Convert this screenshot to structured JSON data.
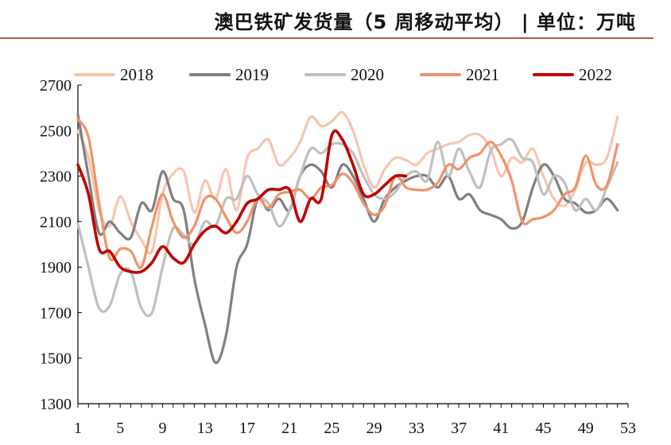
{
  "chart_data": {
    "type": "line",
    "title": "澳巴铁矿发货量（5 周移动平均） | 单位：万吨",
    "xlabel": "",
    "ylabel": "",
    "ylim": [
      1300,
      2700
    ],
    "xlim": [
      1,
      53
    ],
    "yticks": [
      1300,
      1500,
      1700,
      1900,
      2100,
      2300,
      2500,
      2700
    ],
    "xticks": [
      1,
      5,
      9,
      13,
      17,
      21,
      25,
      29,
      33,
      37,
      41,
      45,
      49,
      53
    ],
    "grid": false,
    "legend_position": "top",
    "series": [
      {
        "name": "2018",
        "color": "#f5c6b0",
        "values": [
          2500,
          2380,
          2150,
          2080,
          2210,
          2100,
          2020,
          1970,
          2220,
          2310,
          2320,
          2140,
          2280,
          2200,
          2330,
          2150,
          2380,
          2420,
          2460,
          2350,
          2380,
          2450,
          2560,
          2520,
          2540,
          2580,
          2500,
          2350,
          2250,
          2330,
          2380,
          2370,
          2350,
          2400,
          2420,
          2440,
          2450,
          2480,
          2480,
          2420,
          2300,
          2380,
          2360,
          2420,
          2300,
          2200,
          2170,
          2240,
          2360,
          2350,
          2380,
          2560
        ]
      },
      {
        "name": "2019",
        "color": "#7f7f7f",
        "values": [
          2570,
          2300,
          2050,
          2100,
          2050,
          2030,
          2180,
          2150,
          2320,
          2200,
          2150,
          1850,
          1650,
          1480,
          1600,
          1900,
          2000,
          2200,
          2150,
          2200,
          2150,
          2300,
          2350,
          2320,
          2250,
          2350,
          2300,
          2200,
          2100,
          2200,
          2250,
          2280,
          2300,
          2300,
          2250,
          2300,
          2200,
          2220,
          2150,
          2130,
          2110,
          2070,
          2100,
          2250,
          2350,
          2300,
          2200,
          2180,
          2140,
          2150,
          2200,
          2150
        ]
      },
      {
        "name": "2020",
        "color": "#bfbfbf",
        "values": [
          2090,
          1900,
          1720,
          1730,
          1870,
          1880,
          1720,
          1700,
          1900,
          2070,
          2040,
          2000,
          2100,
          2080,
          2200,
          2200,
          2300,
          2220,
          2180,
          2080,
          2150,
          2300,
          2420,
          2400,
          2440,
          2440,
          2400,
          2300,
          2220,
          2200,
          2230,
          2300,
          2320,
          2280,
          2450,
          2300,
          2420,
          2320,
          2250,
          2410,
          2440,
          2460,
          2380,
          2360,
          2220,
          2300,
          2270,
          2150,
          2200,
          2150,
          2250,
          2360
        ]
      },
      {
        "name": "2021",
        "color": "#f0926a",
        "values": [
          2550,
          2470,
          2180,
          1940,
          1980,
          1970,
          1900,
          2080,
          2220,
          2100,
          2030,
          2080,
          2200,
          2200,
          2120,
          2050,
          2100,
          2200,
          2160,
          2220,
          2230,
          2240,
          2200,
          2250,
          2260,
          2310,
          2270,
          2180,
          2130,
          2170,
          2300,
          2250,
          2240,
          2240,
          2270,
          2350,
          2330,
          2380,
          2400,
          2450,
          2390,
          2280,
          2100,
          2110,
          2120,
          2150,
          2220,
          2250,
          2390,
          2260,
          2260,
          2440
        ]
      },
      {
        "name": "2022",
        "color": "#c00000",
        "values": [
          2350,
          2220,
          1980,
          1970,
          1900,
          1880,
          1880,
          1920,
          1990,
          1940,
          1920,
          2000,
          2060,
          2080,
          2050,
          2100,
          2180,
          2200,
          2240,
          2240,
          2240,
          2100,
          2200,
          2200,
          2480,
          2460,
          2350,
          2220,
          2220,
          2260,
          2300,
          2300
        ]
      }
    ]
  }
}
